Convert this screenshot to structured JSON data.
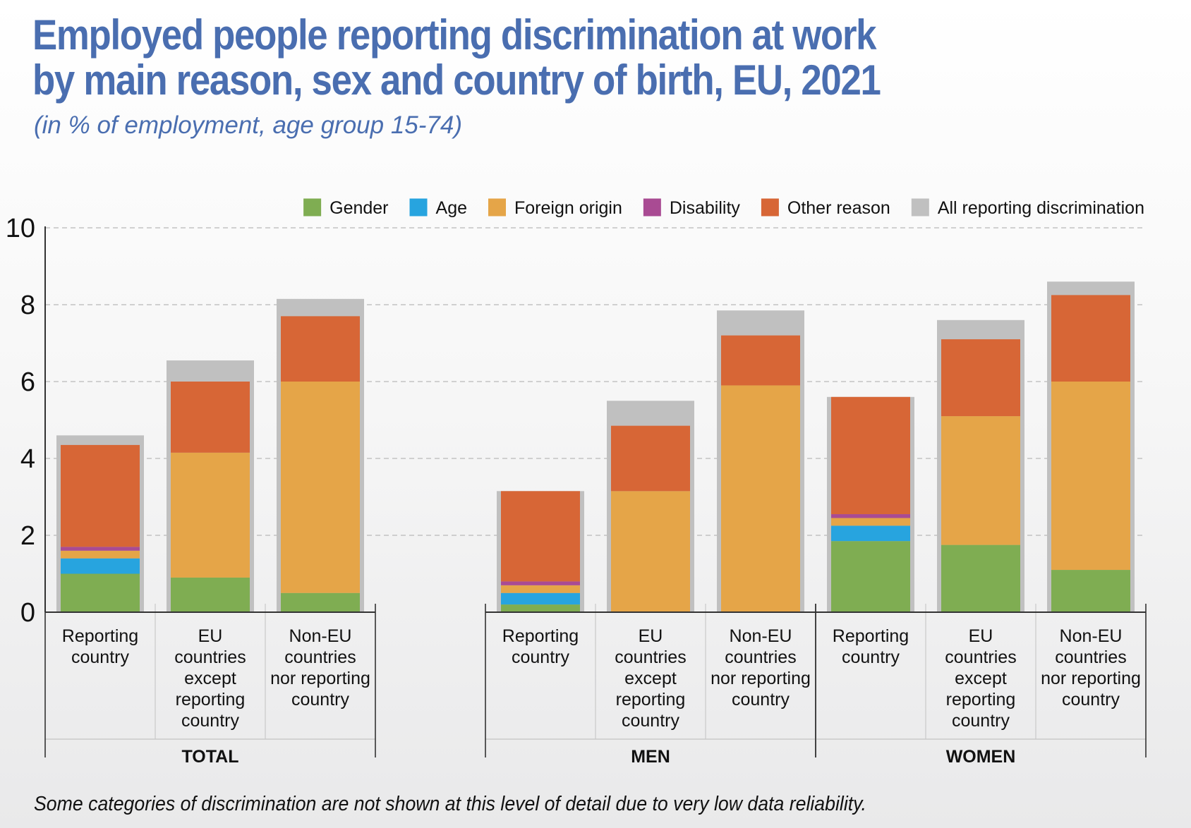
{
  "title_line1": "Employed people reporting discrimination at work",
  "title_line2": "by main reason, sex and country of birth, EU, 2021",
  "subtitle": "(in % of employment, age group 15-74)",
  "footnote": "Some categories of discrimination are not shown at this level of detail due to very low data reliability.",
  "chart_data": {
    "type": "bar",
    "stacked": true,
    "ylim": [
      0,
      10
    ],
    "yticks": [
      0,
      2,
      4,
      6,
      8,
      10
    ],
    "grid": true,
    "legend_position": "top-right",
    "legend": [
      {
        "name": "Gender",
        "color": "#7fad52"
      },
      {
        "name": "Age",
        "color": "#27a4df"
      },
      {
        "name": "Foreign origin",
        "color": "#e5a548"
      },
      {
        "name": "Disability",
        "color": "#a94b93"
      },
      {
        "name": "Other reason",
        "color": "#d76636"
      },
      {
        "name": "All reporting discrimination",
        "color": "#c0c0c0"
      }
    ],
    "groups": [
      {
        "label": "TOTAL",
        "bars": [
          {
            "label": [
              "Reporting",
              "country"
            ],
            "total": 4.6,
            "segments": {
              "Gender": 1.0,
              "Age": 0.4,
              "Foreign origin": 0.2,
              "Disability": 0.1,
              "Other reason": 2.65
            }
          },
          {
            "label": [
              "EU",
              "countries",
              "except",
              "reporting",
              "country"
            ],
            "total": 6.55,
            "segments": {
              "Gender": 0.9,
              "Age": 0,
              "Foreign origin": 3.25,
              "Disability": 0,
              "Other reason": 1.85
            }
          },
          {
            "label": [
              "Non-EU",
              "countries",
              "nor reporting",
              "country"
            ],
            "total": 8.15,
            "segments": {
              "Gender": 0.5,
              "Age": 0,
              "Foreign origin": 5.5,
              "Disability": 0,
              "Other reason": 1.7
            }
          }
        ]
      },
      {
        "label": "MEN",
        "bars": [
          {
            "label": [
              "Reporting",
              "country"
            ],
            "total": 3.15,
            "segments": {
              "Gender": 0.2,
              "Age": 0.3,
              "Foreign origin": 0.2,
              "Disability": 0.1,
              "Other reason": 2.35
            }
          },
          {
            "label": [
              "EU",
              "countries",
              "except",
              "reporting",
              "country"
            ],
            "total": 5.5,
            "segments": {
              "Gender": 0,
              "Age": 0,
              "Foreign origin": 3.15,
              "Disability": 0,
              "Other reason": 1.7
            }
          },
          {
            "label": [
              "Non-EU",
              "countries",
              "nor reporting",
              "country"
            ],
            "total": 7.85,
            "segments": {
              "Gender": 0,
              "Age": 0,
              "Foreign origin": 5.9,
              "Disability": 0,
              "Other reason": 1.3
            }
          }
        ]
      },
      {
        "label": "WOMEN",
        "bars": [
          {
            "label": [
              "Reporting",
              "country"
            ],
            "total": 5.6,
            "segments": {
              "Gender": 1.85,
              "Age": 0.4,
              "Foreign origin": 0.2,
              "Disability": 0.1,
              "Other reason": 3.05
            }
          },
          {
            "label": [
              "EU",
              "countries",
              "except",
              "reporting",
              "country"
            ],
            "total": 7.6,
            "segments": {
              "Gender": 1.75,
              "Age": 0,
              "Foreign origin": 3.35,
              "Disability": 0,
              "Other reason": 2.0
            }
          },
          {
            "label": [
              "Non-EU",
              "countries",
              "nor reporting",
              "country"
            ],
            "total": 8.6,
            "segments": {
              "Gender": 1.1,
              "Age": 0,
              "Foreign origin": 4.9,
              "Disability": 0,
              "Other reason": 2.25
            }
          }
        ]
      }
    ]
  }
}
